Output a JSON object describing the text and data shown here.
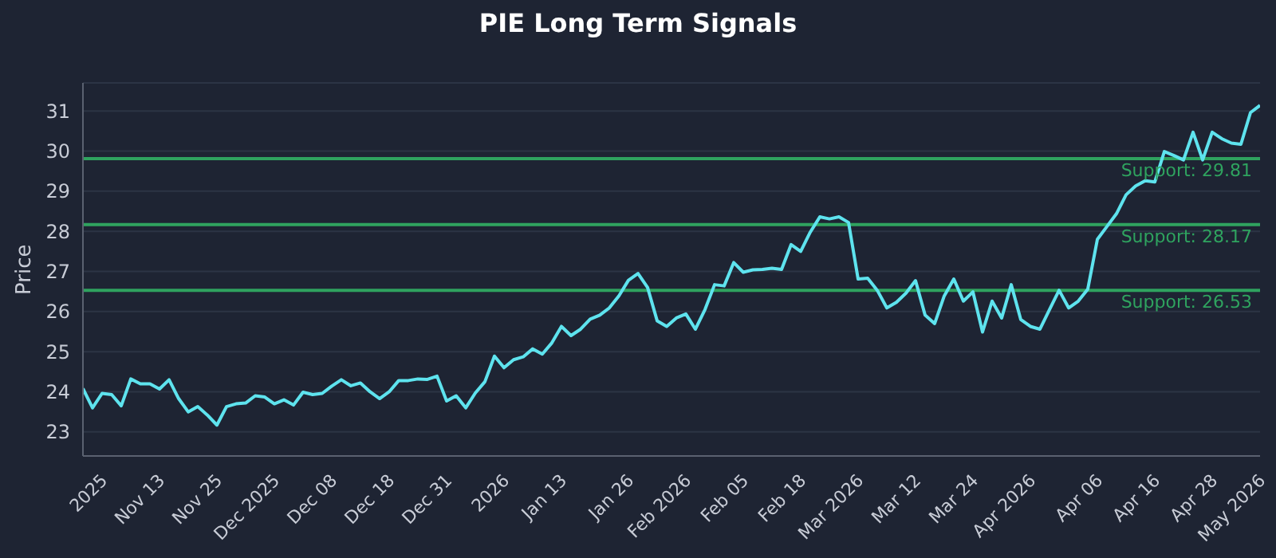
{
  "chart_data": {
    "type": "line",
    "title": "PIE Long Term Signals",
    "ylabel": "Price",
    "categories": [
      null,
      null,
      "2025",
      null,
      null,
      null,
      null,
      null,
      "Nov 13",
      null,
      null,
      null,
      null,
      null,
      "Nov 25",
      null,
      null,
      null,
      null,
      null,
      "Dec 2025",
      null,
      null,
      null,
      null,
      null,
      "Dec 08",
      null,
      null,
      null,
      null,
      null,
      "Dec 18",
      null,
      null,
      null,
      null,
      null,
      "Dec 31",
      null,
      null,
      null,
      null,
      null,
      "2026",
      null,
      null,
      null,
      null,
      null,
      "Jan 13",
      null,
      null,
      null,
      null,
      null,
      null,
      "Jan 26",
      null,
      null,
      null,
      null,
      null,
      "Feb 2026",
      null,
      null,
      null,
      null,
      null,
      "Feb 05",
      null,
      null,
      null,
      null,
      null,
      "Feb 18",
      null,
      null,
      null,
      null,
      null,
      "Mar 2026",
      null,
      null,
      null,
      null,
      null,
      "Mar 12",
      null,
      null,
      null,
      null,
      null,
      "Mar 24",
      null,
      null,
      null,
      null,
      null,
      "Apr 2026",
      null,
      null,
      null,
      null,
      null,
      null,
      "Apr 06",
      null,
      null,
      null,
      null,
      null,
      "Apr 16",
      null,
      null,
      null,
      null,
      null,
      "Apr 28",
      null,
      null,
      null,
      null,
      "May 2026"
    ],
    "series": [
      {
        "color": "#5ee3ee",
        "values": [
          24.08,
          23.6,
          23.96,
          23.93,
          23.65,
          24.32,
          24.2,
          24.2,
          24.07,
          24.3,
          23.83,
          23.5,
          23.63,
          23.42,
          23.17,
          23.63,
          23.7,
          23.72,
          23.9,
          23.87,
          23.7,
          23.8,
          23.67,
          23.99,
          23.93,
          23.96,
          24.14,
          24.3,
          24.15,
          24.22,
          24.0,
          23.83,
          24.0,
          24.28,
          24.28,
          24.32,
          24.31,
          24.39,
          23.77,
          23.9,
          23.6,
          23.97,
          24.25,
          24.89,
          24.6,
          24.8,
          24.87,
          25.07,
          24.94,
          25.22,
          25.63,
          25.4,
          25.56,
          25.81,
          25.91,
          26.09,
          26.39,
          26.78,
          26.95,
          26.6,
          25.77,
          25.63,
          25.84,
          25.94,
          25.56,
          26.05,
          26.67,
          26.64,
          27.22,
          26.98,
          27.04,
          27.05,
          27.08,
          27.05,
          27.67,
          27.5,
          27.98,
          28.36,
          28.31,
          28.36,
          28.22,
          26.81,
          26.83,
          26.53,
          26.09,
          26.23,
          26.46,
          26.77,
          25.91,
          25.7,
          26.39,
          26.81,
          26.26,
          26.49,
          25.49,
          26.26,
          25.84,
          26.67,
          25.8,
          25.63,
          25.56,
          26.05,
          26.53,
          26.09,
          26.26,
          26.56,
          27.8,
          28.12,
          28.44,
          28.91,
          29.13,
          29.26,
          29.23,
          29.99,
          29.89,
          29.78,
          30.47,
          29.78,
          30.47,
          30.31,
          30.2,
          30.17,
          30.96,
          31.14
        ]
      }
    ],
    "ylim": [
      22.4,
      31.7
    ],
    "yticks": [
      23,
      24,
      25,
      26,
      27,
      28,
      29,
      30,
      31
    ],
    "grid": "y",
    "marker": "none",
    "line_style": "solid",
    "ref_lines": [
      {
        "axis": "y",
        "value": 29.81,
        "label": "Support: 29.81",
        "color": "#2fa35f"
      },
      {
        "axis": "y",
        "value": 28.17,
        "label": "Support: 28.17",
        "color": "#2fa35f"
      },
      {
        "axis": "y",
        "value": 26.53,
        "label": "Support: 26.53",
        "color": "#2fa35f"
      }
    ]
  }
}
